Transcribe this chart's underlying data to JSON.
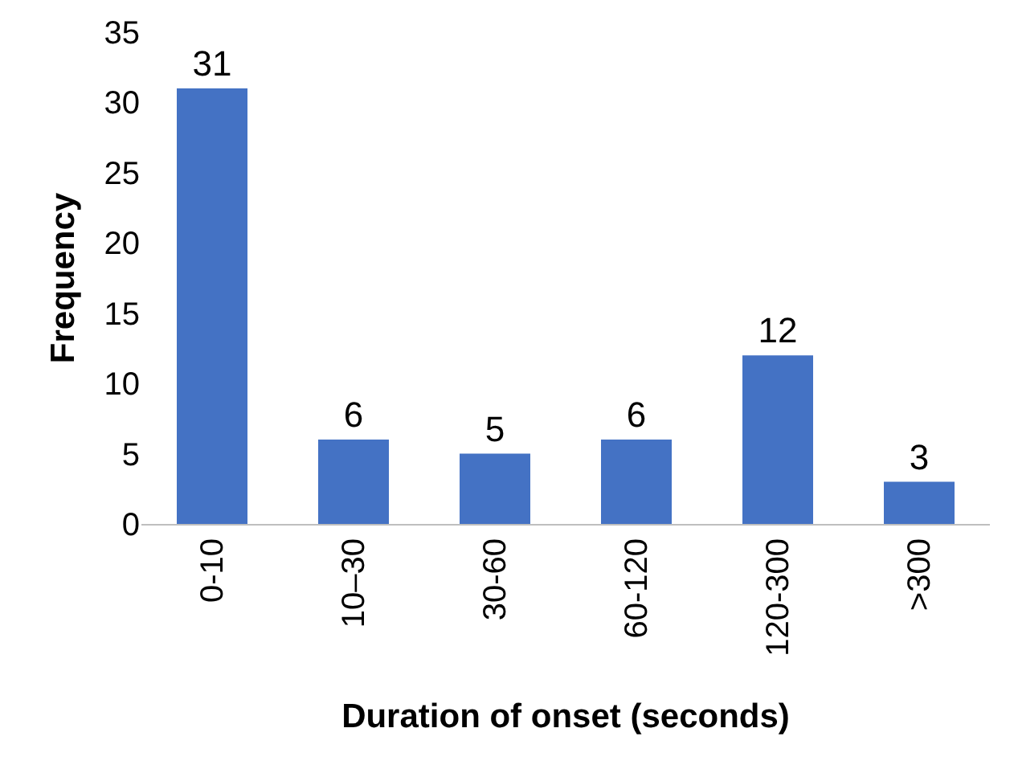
{
  "chart_data": {
    "type": "bar",
    "xlabel": "Duration of onset (seconds)",
    "ylabel": "Frequency",
    "categories": [
      "0-10",
      "10–30",
      "30-60",
      "60-120",
      "120-300",
      ">300"
    ],
    "values": [
      31,
      6,
      5,
      6,
      12,
      3
    ],
    "color": "#4472c4",
    "ylim": [
      0,
      35
    ],
    "yticks": [
      0,
      5,
      10,
      15,
      20,
      25,
      30,
      35
    ],
    "grid": false,
    "data_labels": true
  }
}
